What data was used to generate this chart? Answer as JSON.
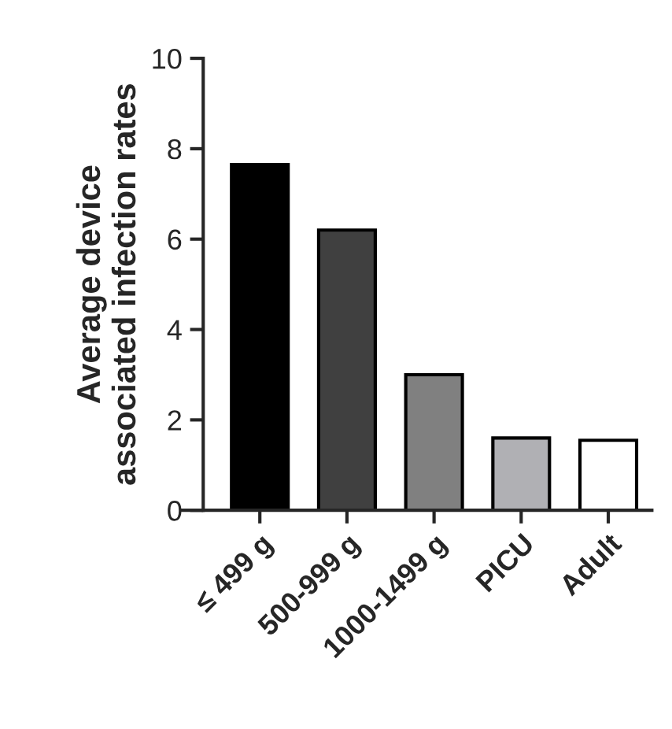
{
  "chart_data": {
    "type": "bar",
    "ylabel": "Average device\nassociated infection rates",
    "categories": [
      "≤ 499 g",
      "500-999 g",
      "1000-1499 g",
      "PICU",
      "Adult"
    ],
    "values": [
      7.65,
      6.2,
      3.0,
      1.6,
      1.55
    ],
    "colors": [
      "#000000",
      "#404040",
      "#808080",
      "#b0b0b4",
      "#ffffff"
    ],
    "ylim": [
      0,
      10
    ],
    "yticks": [
      0,
      2,
      4,
      6,
      8,
      10
    ],
    "grid": false
  }
}
